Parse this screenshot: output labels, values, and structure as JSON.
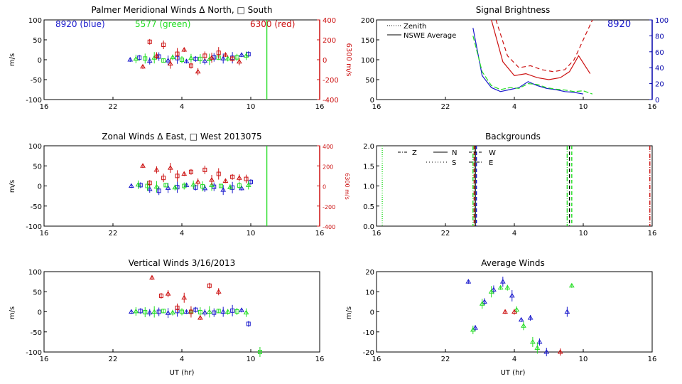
{
  "colors": {
    "blue": "#1a1acc",
    "green": "#22dd22",
    "red": "#cc1111",
    "black": "#000000",
    "navy": "#0000aa"
  },
  "panels": {
    "meridional": {
      "title": "Palmer Meridional Winds Δ North, □ South",
      "ylabel": "m/s",
      "right_ylabel": "6300 m/s",
      "legend_blue": "8920 (blue)",
      "legend_green": "5577 (green)",
      "legend_red": "6300 (red)"
    },
    "brightness": {
      "title": "Signal Brightness",
      "legend_zenith": "Zenith",
      "legend_nswe": "NSWE Average",
      "tag": "8920"
    },
    "zonal": {
      "title": "Zonal Winds Δ East, □ West 2013075",
      "ylabel": "m/s",
      "right_ylabel": "6300 m/s"
    },
    "backgrounds": {
      "title": "Backgrounds",
      "legend": {
        "z": "Z",
        "n": "N",
        "w": "W",
        "s": "S",
        "e": "E"
      }
    },
    "vertical": {
      "title": "Vertical Winds 3/16/2013",
      "ylabel": "m/s",
      "xlabel": "UT (hr)"
    },
    "average": {
      "title": "Average Winds",
      "ylabel": "m/s",
      "xlabel": "UT (hr)"
    }
  },
  "chart_data": [
    {
      "type": "scatter",
      "id": "meridional",
      "title": "Palmer Meridional Winds Δ North, □ South",
      "xlabel": "",
      "ylabel": "m/s",
      "x_ticks": [
        "16",
        "22",
        "4",
        "10",
        "16"
      ],
      "xlim": [
        16,
        40
      ],
      "ylim": [
        -100,
        100
      ],
      "y_ticks": [
        -100,
        -50,
        0,
        50,
        100
      ],
      "right_axis": {
        "label": "6300 m/s",
        "ylim": [
          -400,
          400
        ],
        "ticks": [
          -400,
          -200,
          0,
          200,
          400
        ]
      },
      "series": [
        {
          "name": "8920 (blue)",
          "x": [
            23.5,
            24.3,
            25.2,
            26.0,
            26.8,
            27.6,
            28.4,
            29.2,
            30.0,
            30.8,
            31.6,
            32.4,
            33.2,
            33.8
          ],
          "y": [
            0,
            5,
            -3,
            8,
            -2,
            4,
            -4,
            2,
            -3,
            6,
            3,
            5,
            12,
            14
          ]
        },
        {
          "name": "5577 (green)",
          "x": [
            24.0,
            24.8,
            25.6,
            26.4,
            27.2,
            28.0,
            28.8,
            29.6,
            30.4,
            31.2,
            32.0,
            32.8,
            33.6
          ],
          "y": [
            2,
            3,
            5,
            -2,
            6,
            0,
            4,
            2,
            1,
            5,
            3,
            6,
            10
          ]
        },
        {
          "name": "6300 (red)",
          "x": [
            24.6,
            25.2,
            25.8,
            26.4,
            27.0,
            27.6,
            28.2,
            28.8,
            29.4,
            30.0,
            30.6,
            31.2,
            31.8,
            32.4,
            33.0
          ],
          "y": [
            -70,
            180,
            40,
            150,
            -40,
            60,
            100,
            -60,
            -120,
            40,
            20,
            70,
            50,
            10,
            -20
          ]
        }
      ],
      "vertical_line_x": 35.4
    },
    {
      "type": "line",
      "id": "brightness",
      "title": "Signal Brightness",
      "xlabel": "",
      "ylabel": "",
      "x_ticks": [
        "16",
        "22",
        "4",
        "10",
        "16"
      ],
      "xlim": [
        16,
        40
      ],
      "ylim": [
        0,
        200
      ],
      "y_ticks": [
        0,
        50,
        100,
        150,
        200
      ],
      "right_axis": {
        "ylim": [
          0,
          100
        ],
        "ticks": [
          0,
          20,
          40,
          60,
          80,
          100
        ]
      },
      "series": [
        {
          "name": "NSWE Average (blue)",
          "x": [
            24.4,
            25.2,
            26.0,
            26.8,
            27.6,
            28.4,
            29.2,
            30.0,
            30.8,
            31.6,
            32.4,
            33.2,
            34.0
          ],
          "y": [
            180,
            60,
            30,
            20,
            25,
            30,
            45,
            35,
            28,
            25,
            20,
            18,
            14
          ]
        },
        {
          "name": "NSWE Average (green)",
          "x": [
            24.4,
            25.2,
            26.0,
            26.8,
            27.6,
            28.4,
            29.2,
            30.0,
            30.8,
            31.6,
            32.4,
            33.2,
            34.0,
            34.8
          ],
          "y": [
            160,
            70,
            35,
            25,
            30,
            28,
            40,
            38,
            30,
            26,
            24,
            20,
            22,
            14
          ]
        },
        {
          "name": "NSWE Average (red)",
          "x": [
            26.0,
            27.0,
            28.0,
            29.0,
            30.0,
            31.0,
            32.0,
            32.8,
            33.6,
            34.6
          ],
          "y": [
            200,
            95,
            60,
            65,
            55,
            50,
            55,
            70,
            110,
            65
          ]
        },
        {
          "name": "Zenith (red dashed)",
          "x": [
            26.4,
            27.4,
            28.4,
            29.4,
            30.4,
            31.4,
            32.4,
            33.2,
            34.0,
            34.8
          ],
          "y": [
            200,
            110,
            80,
            85,
            75,
            70,
            75,
            100,
            150,
            200
          ]
        }
      ]
    },
    {
      "type": "scatter",
      "id": "zonal",
      "title": "Zonal Winds Δ East, □ West 2013075",
      "xlabel": "",
      "ylabel": "m/s",
      "x_ticks": [
        "16",
        "22",
        "4",
        "10",
        "16"
      ],
      "xlim": [
        16,
        40
      ],
      "ylim": [
        -100,
        100
      ],
      "y_ticks": [
        -100,
        -50,
        0,
        50,
        100
      ],
      "right_axis": {
        "label": "6300 m/s",
        "ylim": [
          -400,
          400
        ],
        "ticks": [
          -400,
          -200,
          0,
          200,
          400
        ]
      },
      "series": [
        {
          "name": "8920 (blue)",
          "x": [
            23.6,
            24.4,
            25.2,
            26.0,
            26.8,
            27.6,
            28.4,
            29.2,
            30.0,
            30.8,
            31.6,
            32.4,
            33.2,
            34.0
          ],
          "y": [
            0,
            2,
            -8,
            -12,
            -5,
            -3,
            2,
            -4,
            -6,
            -2,
            -10,
            -4,
            -6,
            10
          ]
        },
        {
          "name": "5577 (green)",
          "x": [
            24.2,
            25.0,
            25.8,
            26.6,
            27.4,
            28.2,
            29.0,
            29.8,
            30.6,
            31.4,
            32.2,
            33.0,
            33.8
          ],
          "y": [
            3,
            0,
            -2,
            2,
            -4,
            0,
            3,
            -1,
            2,
            0,
            -3,
            1,
            2
          ]
        },
        {
          "name": "6300 (red)",
          "x": [
            24.6,
            25.2,
            25.8,
            26.4,
            27.0,
            27.6,
            28.2,
            28.8,
            29.4,
            30.0,
            30.6,
            31.2,
            31.8,
            32.4,
            33.0,
            33.6
          ],
          "y": [
            200,
            30,
            160,
            80,
            180,
            100,
            120,
            140,
            40,
            160,
            60,
            120,
            50,
            90,
            80,
            70
          ]
        }
      ],
      "vertical_line_x": 35.4
    },
    {
      "type": "line",
      "id": "backgrounds",
      "title": "Backgrounds",
      "xlabel": "",
      "ylabel": "",
      "x_ticks": [
        "16",
        "22",
        "4",
        "10",
        "16"
      ],
      "xlim": [
        16,
        40
      ],
      "ylim": [
        0,
        2
      ],
      "y_ticks": [
        "0.0",
        "0.5",
        "1.0",
        "1.5",
        "2.0"
      ],
      "vertical_lines": [
        {
          "x": 16.5,
          "color": "green",
          "style": "dotted"
        },
        {
          "x": 24.4,
          "color": "green",
          "style": "dashdot"
        },
        {
          "x": 24.5,
          "color": "red",
          "style": "dashed"
        },
        {
          "x": 24.6,
          "color": "black",
          "style": "solid"
        },
        {
          "x": 24.7,
          "color": "blue",
          "style": "dashed"
        },
        {
          "x": 32.6,
          "color": "green",
          "style": "dashdot"
        },
        {
          "x": 32.8,
          "color": "black",
          "style": "dashed"
        },
        {
          "x": 33.0,
          "color": "green",
          "style": "dashed"
        },
        {
          "x": 39.8,
          "color": "red",
          "style": "dashdot"
        }
      ]
    },
    {
      "type": "scatter",
      "id": "vertical",
      "title": "Vertical Winds 3/16/2013",
      "xlabel": "UT (hr)",
      "ylabel": "m/s",
      "x_ticks": [
        "16",
        "22",
        "4",
        "10",
        "16"
      ],
      "xlim": [
        16,
        40
      ],
      "ylim": [
        -100,
        100
      ],
      "y_ticks": [
        -100,
        -50,
        0,
        50,
        100
      ],
      "series": [
        {
          "name": "8920 (blue)",
          "x": [
            23.6,
            24.4,
            25.2,
            26.0,
            26.8,
            27.6,
            28.4,
            29.2,
            30.0,
            30.8,
            31.6,
            32.4,
            33.2,
            33.8
          ],
          "y": [
            0,
            2,
            -2,
            0,
            -3,
            2,
            0,
            5,
            -2,
            -2,
            0,
            3,
            4,
            -30
          ]
        },
        {
          "name": "5577 (green)",
          "x": [
            24.0,
            24.8,
            25.6,
            26.4,
            27.2,
            28.0,
            28.8,
            29.6,
            30.4,
            31.2,
            32.0,
            32.8,
            33.6,
            34.8
          ],
          "y": [
            1,
            -1,
            0,
            2,
            -2,
            0,
            1,
            -1,
            0,
            2,
            0,
            1,
            -2,
            -100
          ]
        },
        {
          "name": "6300 (red)",
          "x": [
            25.4,
            26.2,
            26.8,
            27.6,
            28.2,
            28.8,
            29.6,
            30.4,
            31.2
          ],
          "y": [
            85,
            40,
            45,
            10,
            35,
            0,
            -15,
            65,
            50
          ]
        }
      ]
    },
    {
      "type": "scatter",
      "id": "average",
      "title": "Average Winds",
      "xlabel": "UT (hr)",
      "ylabel": "m/s",
      "x_ticks": [
        "16",
        "22",
        "4",
        "10",
        "16"
      ],
      "xlim": [
        16,
        40
      ],
      "ylim": [
        -20,
        20
      ],
      "y_ticks": [
        -20,
        -10,
        0,
        10,
        20
      ],
      "series": [
        {
          "name": "blue",
          "x": [
            24.0,
            24.6,
            25.4,
            26.2,
            27.0,
            27.8,
            28.6,
            29.4,
            30.2,
            30.8,
            32.6
          ],
          "y": [
            15,
            -8,
            5,
            11,
            15,
            8,
            -4,
            -3,
            -15,
            -20,
            0
          ]
        },
        {
          "name": "green",
          "x": [
            24.4,
            25.2,
            26.0,
            26.8,
            27.4,
            28.2,
            28.8,
            29.6,
            30.0,
            33.0
          ],
          "y": [
            -9,
            4,
            10,
            12,
            12,
            1,
            -7,
            -15,
            -18,
            13
          ]
        },
        {
          "name": "red",
          "x": [
            27.2,
            28.0,
            32.0
          ],
          "y": [
            0,
            0,
            -20
          ]
        }
      ]
    }
  ]
}
